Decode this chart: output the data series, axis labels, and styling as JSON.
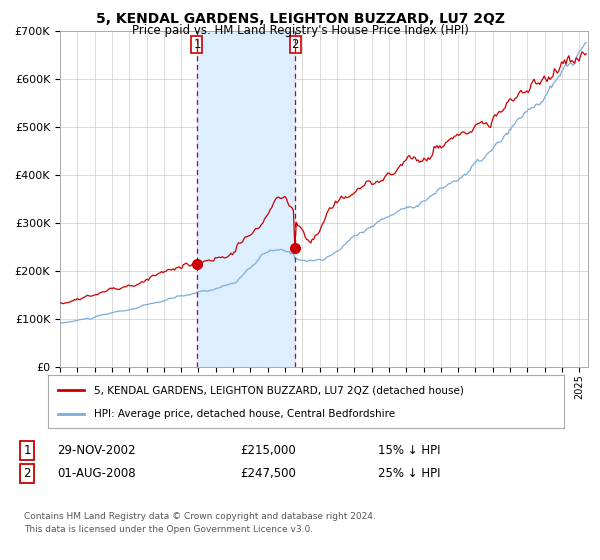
{
  "title": "5, KENDAL GARDENS, LEIGHTON BUZZARD, LU7 2QZ",
  "subtitle": "Price paid vs. HM Land Registry's House Price Index (HPI)",
  "hpi_label": "HPI: Average price, detached house, Central Bedfordshire",
  "price_label": "5, KENDAL GARDENS, LEIGHTON BUZZARD, LU7 2QZ (detached house)",
  "legend_entry1_date": "29-NOV-2002",
  "legend_entry1_price": "£215,000",
  "legend_entry1_pct": "15% ↓ HPI",
  "legend_entry2_date": "01-AUG-2008",
  "legend_entry2_price": "£247,500",
  "legend_entry2_pct": "25% ↓ HPI",
  "sale1_year": 2002.91,
  "sale1_price": 215000,
  "sale2_year": 2008.58,
  "sale2_price": 247500,
  "hpi_color": "#7aaddc",
  "price_color": "#cc0000",
  "shade_color": "#ddeeff",
  "vline_color": "#cc0000",
  "background_color": "#ffffff",
  "grid_color": "#cccccc",
  "ylim": [
    0,
    700000
  ],
  "xlim_start": 1995.0,
  "xlim_end": 2025.5,
  "footer": "Contains HM Land Registry data © Crown copyright and database right 2024.\nThis data is licensed under the Open Government Licence v3.0."
}
